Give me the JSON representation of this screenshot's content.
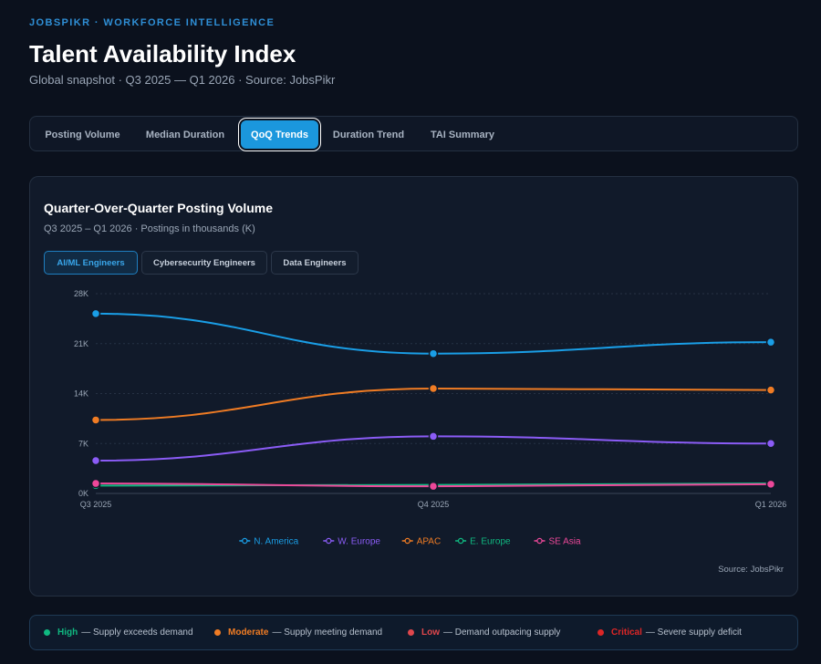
{
  "header": {
    "kicker": "JOBSPIKR · WORKFORCE INTELLIGENCE",
    "title": "Talent Availability Index",
    "subtitle": "Global snapshot · Q3 2025 — Q1 2026 · Source: JobsPikr"
  },
  "tabs": [
    {
      "label": "Posting Volume",
      "active": false
    },
    {
      "label": "Median Duration",
      "active": false
    },
    {
      "label": "QoQ Trends",
      "active": true
    },
    {
      "label": "Duration Trend",
      "active": false
    },
    {
      "label": "TAI Summary",
      "active": false
    }
  ],
  "card": {
    "title": "Quarter-Over-Quarter Posting Volume",
    "subtitle": "Q3 2025 – Q1 2026 · Postings in thousands (K)",
    "segments": [
      {
        "label": "AI/ML Engineers",
        "active": true
      },
      {
        "label": "Cybersecurity Engineers",
        "active": false
      },
      {
        "label": "Data Engineers",
        "active": false
      }
    ],
    "source": "Source: JobsPikr"
  },
  "chart_data": {
    "type": "line",
    "x": [
      "Q3 2025",
      "Q4 2025",
      "Q1 2026"
    ],
    "y_ticks": [
      "0K",
      "7K",
      "14K",
      "21K",
      "28K"
    ],
    "ylim": [
      0,
      28
    ],
    "grid": true,
    "legend_position": "bottom",
    "series": [
      {
        "name": "N. America",
        "color": "#1a9ee6",
        "values": [
          25.2,
          19.6,
          21.2
        ]
      },
      {
        "name": "W. Europe",
        "color": "#8b5cf6",
        "values": [
          4.6,
          8.0,
          7.0
        ]
      },
      {
        "name": "APAC",
        "color": "#f07c24",
        "values": [
          10.3,
          14.7,
          14.5
        ]
      },
      {
        "name": "E. Europe",
        "color": "#10b981",
        "values": [
          1.1,
          1.2,
          1.4
        ]
      },
      {
        "name": "SE Asia",
        "color": "#ec4899",
        "values": [
          1.4,
          1.0,
          1.3
        ]
      }
    ]
  },
  "legend": [
    {
      "label": "High",
      "desc": "— Supply exceeds demand",
      "color": "#10b981"
    },
    {
      "label": "Moderate",
      "desc": "— Supply meeting demand",
      "color": "#f07c24"
    },
    {
      "label": "Low",
      "desc": "— Demand outpacing supply",
      "color": "#e0474c"
    },
    {
      "label": "Critical",
      "desc": "— Severe supply deficit",
      "color": "#dc2626"
    }
  ]
}
